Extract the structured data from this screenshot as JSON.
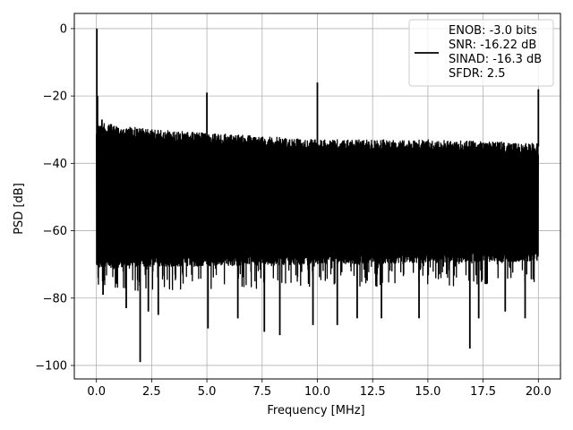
{
  "chart_data": {
    "type": "line",
    "xlabel": "Frequency [MHz]",
    "ylabel": "PSD [dB]",
    "xlim": [
      -1.0,
      21.0
    ],
    "ylim": [
      -104.0,
      4.5
    ],
    "xticks": [
      0.0,
      2.5,
      5.0,
      7.5,
      10.0,
      12.5,
      15.0,
      17.5,
      20.0
    ],
    "xtick_labels": [
      "0.0",
      "2.5",
      "5.0",
      "7.5",
      "10.0",
      "12.5",
      "15.0",
      "17.5",
      "20.0"
    ],
    "yticks": [
      0,
      -20,
      -40,
      -60,
      -80,
      -100
    ],
    "ytick_labels": [
      "0",
      "−20",
      "−40",
      "−60",
      "−80",
      "−100"
    ],
    "grid": true,
    "legend_position": "top-right",
    "series": [
      {
        "name": "ENOB: -3.0 bits\nSNR: -16.22 dB\nSINAD: -16.3 dB\nSFDR: 2.5",
        "legend_lines": [
          "ENOB: -3.0 bits",
          "SNR: -16.22 dB",
          "SINAD: -16.3 dB",
          "SFDR: 2.5"
        ],
        "color": "#000000",
        "x_range": [
          0.0,
          20.0
        ],
        "noise_floor_mean_db": -50,
        "noise_upper_envelope": [
          [
            0.0,
            -29
          ],
          [
            0.1,
            -28
          ],
          [
            2.5,
            -30
          ],
          [
            5.0,
            -31
          ],
          [
            10.0,
            -33
          ],
          [
            15.0,
            -33
          ],
          [
            20.0,
            -34
          ]
        ],
        "noise_lower_envelope": [
          [
            0.0,
            -68
          ],
          [
            20.0,
            -66
          ]
        ],
        "noise_dips": [
          [
            0.3,
            -79
          ],
          [
            1.35,
            -83
          ],
          [
            1.98,
            -99
          ],
          [
            2.35,
            -84
          ],
          [
            2.8,
            -85
          ],
          [
            5.05,
            -89
          ],
          [
            6.4,
            -86
          ],
          [
            7.6,
            -90
          ],
          [
            8.3,
            -91
          ],
          [
            9.8,
            -88
          ],
          [
            10.9,
            -88
          ],
          [
            11.8,
            -86
          ],
          [
            12.9,
            -86
          ],
          [
            14.6,
            -86
          ],
          [
            16.9,
            -95
          ],
          [
            17.3,
            -86
          ],
          [
            18.5,
            -84
          ],
          [
            19.4,
            -86
          ]
        ],
        "peaks": [
          [
            0.02,
            0
          ],
          [
            0.05,
            -20
          ],
          [
            0.25,
            -27
          ],
          [
            5.0,
            -19
          ],
          [
            10.0,
            -16
          ],
          [
            20.0,
            -18
          ]
        ]
      }
    ]
  }
}
